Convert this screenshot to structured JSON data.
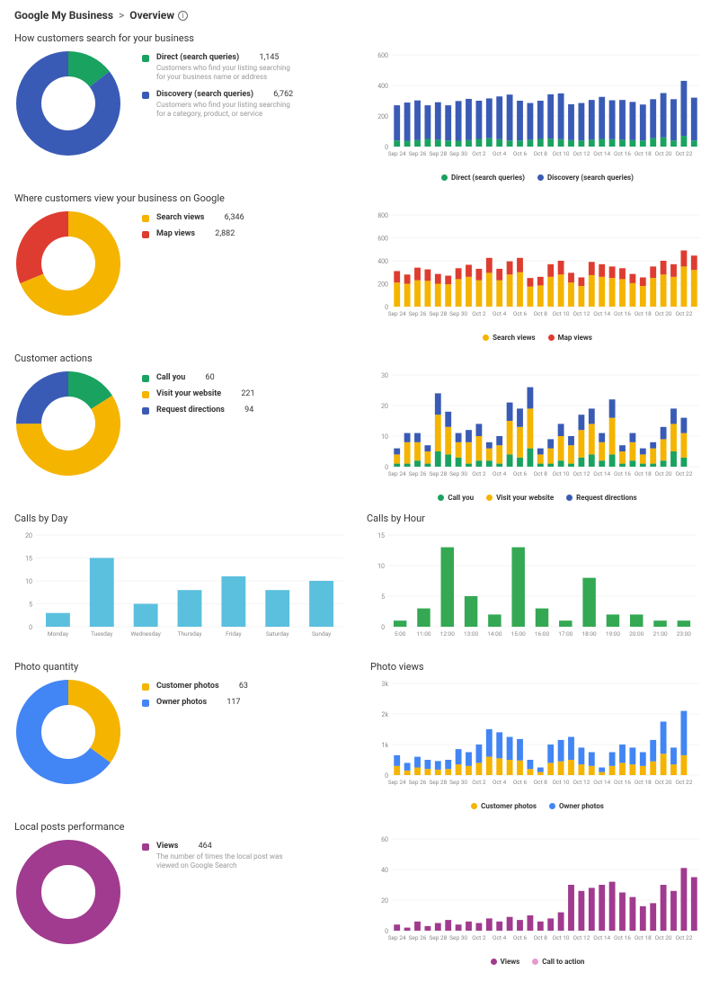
{
  "header": {
    "app": "Google My Business",
    "sep": ">",
    "page": "Overview"
  },
  "xlabels": [
    "Sep 24",
    "Sep 26",
    "Sep 28",
    "Sep 30",
    "Oct 2",
    "Oct 4",
    "Oct 6",
    "Oct 8",
    "Oct 10",
    "Oct 12",
    "Oct 14",
    "Oct 16",
    "Oct 18",
    "Oct 20",
    "Oct 22"
  ],
  "colors": {
    "green": "#1aa260",
    "blue": "#3a5bb5",
    "yellow": "#f4b400",
    "red": "#de3c30",
    "lightblue": "#5bc0de",
    "grassgreen": "#34a853",
    "purple": "#a03b8f",
    "pink": "#e699d1",
    "axis": "#999",
    "grid": "#e8e8e8",
    "text": "#888"
  },
  "sections": [
    {
      "title": "How customers search for your business",
      "donut": {
        "slices": [
          {
            "label": "Direct (search queries)",
            "value": 1145,
            "color": "#1aa260",
            "desc": "Customers who find your listing searching for your business name or address"
          },
          {
            "label": "Discovery (search queries)",
            "value": 6762,
            "color": "#3a5bb5",
            "desc": "Customers who find your listing searching for a category, product, or service"
          }
        ]
      },
      "bar": {
        "type": "stacked",
        "ymax": 600,
        "ystep": 200,
        "series": [
          {
            "label": "Direct (search queries)",
            "color": "#1aa260",
            "data": [
              40,
              38,
              42,
              50,
              45,
              40,
              38,
              42,
              50,
              55,
              48,
              40,
              40,
              45,
              50,
              52,
              48,
              42,
              40,
              45,
              50,
              48,
              45,
              42,
              40,
              55,
              60,
              40,
              70,
              40
            ]
          },
          {
            "label": "Discovery (search queries)",
            "color": "#3a5bb5",
            "data": [
              230,
              250,
              260,
              220,
              245,
              230,
              260,
              270,
              250,
              260,
              280,
              300,
              260,
              240,
              250,
              290,
              300,
              235,
              245,
              260,
              275,
              255,
              260,
              250,
              235,
              255,
              290,
              270,
              360,
              280
            ]
          }
        ]
      }
    },
    {
      "title": "Where customers view your business on Google",
      "donut": {
        "slices": [
          {
            "label": "Search views",
            "value": 6346,
            "color": "#f4b400"
          },
          {
            "label": "Map views",
            "value": 2882,
            "color": "#de3c30"
          }
        ]
      },
      "bar": {
        "type": "stacked",
        "ymax": 800,
        "ystep": 200,
        "series": [
          {
            "label": "Search views",
            "color": "#f4b400",
            "data": [
              210,
              200,
              230,
              225,
              200,
              195,
              240,
              260,
              230,
              295,
              230,
              280,
              300,
              175,
              185,
              260,
              280,
              210,
              180,
              275,
              260,
              250,
              240,
              205,
              180,
              250,
              280,
              260,
              350,
              320
            ]
          },
          {
            "label": "Map views",
            "color": "#de3c30",
            "data": [
              100,
              80,
              110,
              100,
              85,
              75,
              95,
              105,
              100,
              130,
              100,
              115,
              125,
              75,
              75,
              110,
              120,
              85,
              75,
              115,
              110,
              100,
              95,
              80,
              75,
              100,
              120,
              110,
              140,
              125
            ]
          }
        ]
      }
    },
    {
      "title": "Customer actions",
      "donut": {
        "slices": [
          {
            "label": "Call you",
            "value": 60,
            "color": "#1aa260"
          },
          {
            "label": "Visit your website",
            "value": 221,
            "color": "#f4b400"
          },
          {
            "label": "Request directions",
            "value": 94,
            "color": "#3a5bb5"
          }
        ]
      },
      "bar": {
        "type": "stacked",
        "ymax": 30,
        "ystep": 10,
        "series": [
          {
            "label": "Call you",
            "color": "#1aa260",
            "data": [
              1,
              1,
              2,
              1,
              5,
              4,
              3,
              1,
              2,
              2,
              1,
              4,
              3,
              6,
              1,
              1,
              2,
              1,
              3,
              4,
              2,
              4,
              1,
              2,
              1,
              1,
              2,
              5,
              3,
              0
            ]
          },
          {
            "label": "Visit your website",
            "color": "#f4b400",
            "data": [
              3,
              7,
              6,
              4,
              12,
              9,
              5,
              7,
              8,
              4,
              6,
              11,
              10,
              13,
              3,
              5,
              8,
              6,
              9,
              10,
              6,
              12,
              4,
              6,
              3,
              5,
              7,
              9,
              8,
              0
            ]
          },
          {
            "label": "Request directions",
            "color": "#3a5bb5",
            "data": [
              2,
              3,
              3,
              2,
              7,
              5,
              3,
              4,
              4,
              2,
              3,
              6,
              6,
              7,
              2,
              3,
              4,
              3,
              5,
              5,
              3,
              6,
              2,
              3,
              2,
              2,
              4,
              5,
              5,
              0
            ]
          }
        ]
      }
    }
  ],
  "callsDay": {
    "title": "Calls by Day",
    "ymax": 20,
    "ystep": 5,
    "color": "#5bc0de",
    "labels": [
      "Monday",
      "Tuesday",
      "Wednesday",
      "Thursday",
      "Friday",
      "Saturday",
      "Sunday"
    ],
    "data": [
      3,
      15,
      5,
      8,
      11,
      8,
      10
    ]
  },
  "callsHour": {
    "title": "Calls by Hour",
    "ymax": 15,
    "ystep": 5,
    "color": "#34a853",
    "labels": [
      "5:00",
      "11:00",
      "12:00",
      "13:00",
      "14:00",
      "15:00",
      "16:00",
      "17:00",
      "18:00",
      "19:00",
      "20:00",
      "21:00",
      "23:00"
    ],
    "data": [
      1,
      3,
      13,
      5,
      2,
      13,
      3,
      1,
      8,
      2,
      2,
      1,
      1
    ]
  },
  "photoQty": {
    "title": "Photo quantity",
    "donut": {
      "slices": [
        {
          "label": "Customer photos",
          "value": 63,
          "color": "#f4b400"
        },
        {
          "label": "Owner photos",
          "value": 117,
          "color": "#4285f4"
        }
      ]
    }
  },
  "photoViews": {
    "title": "Photo views",
    "ymax": 3000,
    "ystep": 1000,
    "ylabels": [
      "0",
      "1k",
      "2k",
      "3k"
    ],
    "series": [
      {
        "label": "Customer photos",
        "color": "#f4b400",
        "data": [
          300,
          150,
          250,
          200,
          180,
          200,
          350,
          300,
          400,
          600,
          550,
          500,
          480,
          200,
          100,
          400,
          450,
          500,
          350,
          300,
          100,
          300,
          400,
          350,
          300,
          450,
          700,
          350,
          650,
          0
        ]
      },
      {
        "label": "Owner photos",
        "color": "#4285f4",
        "data": [
          350,
          250,
          350,
          300,
          280,
          300,
          500,
          450,
          600,
          900,
          850,
          750,
          700,
          300,
          150,
          600,
          700,
          750,
          550,
          450,
          150,
          450,
          600,
          550,
          450,
          700,
          1050,
          550,
          1450,
          0
        ]
      }
    ]
  },
  "localPosts": {
    "title": "Local posts performance",
    "donut": {
      "slices": [
        {
          "label": "Views",
          "value": 464,
          "color": "#a03b8f",
          "desc": "The number of times the local post was viewed on Google Search"
        }
      ]
    },
    "bar": {
      "ymax": 60,
      "ystep": 20,
      "series": [
        {
          "label": "Views",
          "color": "#a03b8f",
          "data": [
            4,
            2,
            6,
            3,
            5,
            7,
            4,
            6,
            5,
            8,
            6,
            9,
            7,
            10,
            6,
            8,
            12,
            30,
            26,
            28,
            30,
            32,
            25,
            22,
            16,
            18,
            30,
            26,
            41,
            35
          ]
        },
        {
          "label": "Call to action",
          "color": "#e699d1",
          "data": [
            0,
            0,
            0,
            0,
            0,
            0,
            0,
            0,
            0,
            0,
            0,
            0,
            0,
            0,
            0,
            0,
            0,
            0,
            0,
            0,
            0,
            0,
            0,
            0,
            0,
            0,
            0,
            0,
            0,
            0
          ]
        }
      ]
    }
  }
}
